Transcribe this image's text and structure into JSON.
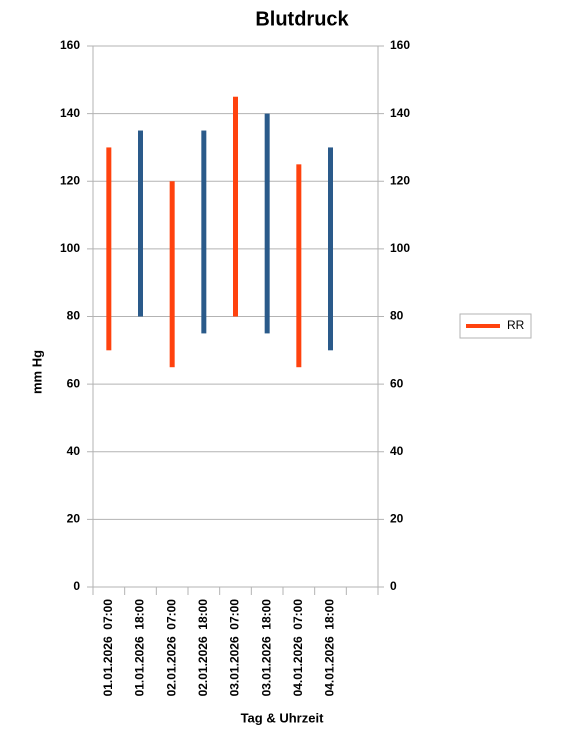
{
  "chart_data": {
    "type": "range-bar",
    "title": "Blutdruck",
    "x_label": "Tag & Uhrzeit",
    "y_label": "mm Hg",
    "categories": [
      "01.01.2026  07:00",
      "01.01.2026  18:00",
      "02.01.2026  07:00",
      "02.01.2026  18:00",
      "03.01.2026  07:00",
      "03.01.2026  18:00",
      "04.01.2026  07:00",
      "04.01.2026  18:00",
      null
    ],
    "series": [
      {
        "name": "RR",
        "color": "#ff420e",
        "low": [
          70,
          80,
          65,
          75,
          80,
          75,
          65,
          70,
          null
        ],
        "high": [
          130,
          135,
          120,
          135,
          145,
          140,
          125,
          130,
          null
        ],
        "point_colors": [
          "#ff420e",
          "#2a5a8a",
          "#ff420e",
          "#2a5a8a",
          "#ff420e",
          "#2a5a8a",
          "#ff420e",
          "#2a5a8a",
          null
        ]
      }
    ],
    "ylim": [
      0,
      160
    ],
    "yticks": [
      0,
      20,
      40,
      60,
      80,
      100,
      120,
      140,
      160
    ],
    "y2lim": [
      0,
      160
    ],
    "y2ticks": [
      0,
      20,
      40,
      60,
      80,
      100,
      120,
      140,
      160
    ],
    "grid": true,
    "legend": "right"
  }
}
